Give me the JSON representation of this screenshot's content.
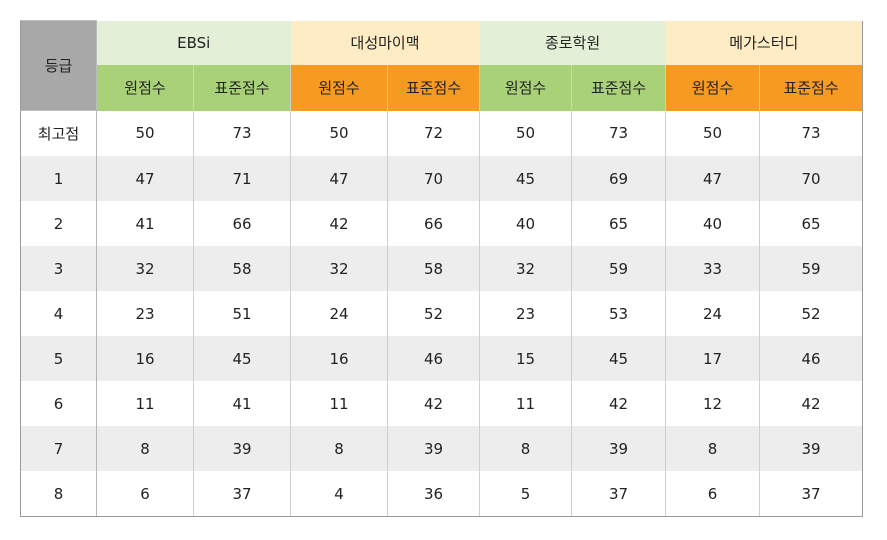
{
  "table": {
    "grade_header": "등급",
    "sources": [
      {
        "name": "EBSi",
        "raw_label": "원점수",
        "std_label": "표준점수"
      },
      {
        "name": "대성마이맥",
        "raw_label": "원점수",
        "std_label": "표준점수"
      },
      {
        "name": "종로학원",
        "raw_label": "원점수",
        "std_label": "표준점수"
      },
      {
        "name": "메가스터디",
        "raw_label": "원점수",
        "std_label": "표준점수"
      }
    ],
    "rows": [
      {
        "grade": "최고점",
        "values": [
          "50",
          "73",
          "50",
          "72",
          "50",
          "73",
          "50",
          "73"
        ]
      },
      {
        "grade": "1",
        "values": [
          "47",
          "71",
          "47",
          "70",
          "45",
          "69",
          "47",
          "70"
        ]
      },
      {
        "grade": "2",
        "values": [
          "41",
          "66",
          "42",
          "66",
          "40",
          "65",
          "40",
          "65"
        ]
      },
      {
        "grade": "3",
        "values": [
          "32",
          "58",
          "32",
          "58",
          "32",
          "59",
          "33",
          "59"
        ]
      },
      {
        "grade": "4",
        "values": [
          "23",
          "51",
          "24",
          "52",
          "23",
          "53",
          "24",
          "52"
        ]
      },
      {
        "grade": "5",
        "values": [
          "16",
          "45",
          "16",
          "46",
          "15",
          "45",
          "17",
          "46"
        ]
      },
      {
        "grade": "6",
        "values": [
          "11",
          "41",
          "11",
          "42",
          "11",
          "42",
          "12",
          "42"
        ]
      },
      {
        "grade": "7",
        "values": [
          "8",
          "39",
          "8",
          "39",
          "8",
          "39",
          "8",
          "39"
        ]
      },
      {
        "grade": "8",
        "values": [
          "6",
          "37",
          "4",
          "36",
          "5",
          "37",
          "6",
          "37"
        ]
      }
    ]
  },
  "colors": {
    "raw_score_text": "#d8542a",
    "green_header": "#a9d278",
    "orange_header": "#f79a22",
    "light_green_header": "#e4efd8",
    "light_orange_header": "#fdecc4",
    "grade_header_bg": "#a8a8a8",
    "alt_row_bg": "#ededed"
  }
}
